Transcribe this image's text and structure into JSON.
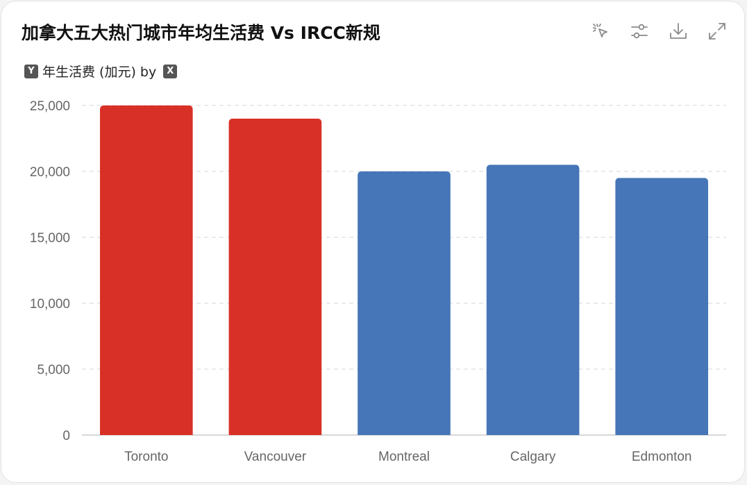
{
  "title": "加拿大五大热门城市年均生活费 Vs IRCC新规",
  "subtitle": {
    "y_badge": "Y",
    "label": "年生活费 (加元) by",
    "x_badge": "X"
  },
  "toolbar": [
    {
      "name": "select-pointer-icon"
    },
    {
      "name": "sliders-icon"
    },
    {
      "name": "download-icon"
    },
    {
      "name": "fullscreen-icon"
    }
  ],
  "chart_data": {
    "type": "bar",
    "categories": [
      "Toronto",
      "Vancouver",
      "Montreal",
      "Calgary",
      "Edmonton"
    ],
    "values": [
      25000,
      24000,
      20000,
      20500,
      19500
    ],
    "colors": [
      "#d83027",
      "#d83027",
      "#4676b8",
      "#4676b8",
      "#4676b8"
    ],
    "ylim": [
      0,
      25000
    ],
    "yticks": [
      0,
      5000,
      10000,
      15000,
      20000,
      25000
    ],
    "ytick_labels": [
      "0",
      "5,000",
      "10,000",
      "15,000",
      "20,000",
      "25,000"
    ],
    "grid": true,
    "legend": "none"
  }
}
